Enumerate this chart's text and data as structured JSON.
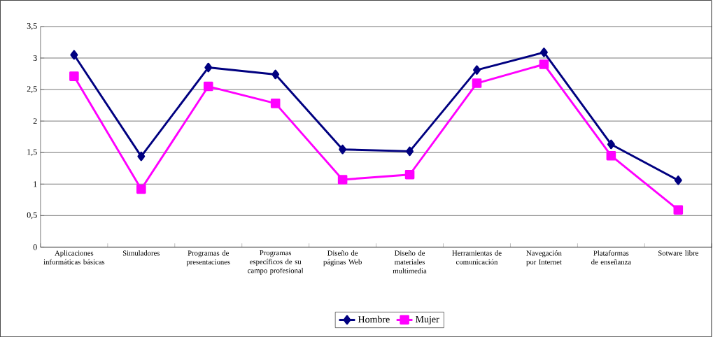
{
  "chart_data": {
    "type": "line",
    "categories": [
      "Aplicaciones informáticas básicas",
      "Simuladores",
      "Programas de presentaciones",
      "Programas específicos de su campo profesional",
      "Diseño de páginas Web",
      "Diseño de materiales multimedia",
      "Herramientas de comunicación",
      "Navegación por Internet",
      "Plataformas de enseñanza",
      "Sotware libre"
    ],
    "series": [
      {
        "name": "Hombre",
        "color": "#000080",
        "marker": "diamond",
        "values": [
          3.05,
          1.44,
          2.85,
          2.74,
          1.55,
          1.52,
          2.81,
          3.09,
          1.63,
          1.06
        ]
      },
      {
        "name": "Mujer",
        "color": "#ff00ff",
        "marker": "square",
        "values": [
          2.71,
          0.92,
          2.55,
          2.28,
          1.07,
          1.15,
          2.6,
          2.9,
          1.45,
          0.59
        ]
      }
    ],
    "ylim": [
      0,
      3.5
    ],
    "yticks": [
      0,
      {
        "value": 0.5,
        "label": "0,5"
      },
      1,
      {
        "value": 1.5,
        "label": "1,5"
      },
      2,
      {
        "value": 2.5,
        "label": "2,5"
      },
      3,
      {
        "value": 3.5,
        "label": "3,5"
      }
    ],
    "grid": "y",
    "legend": "bottom",
    "line_style": "solid"
  }
}
